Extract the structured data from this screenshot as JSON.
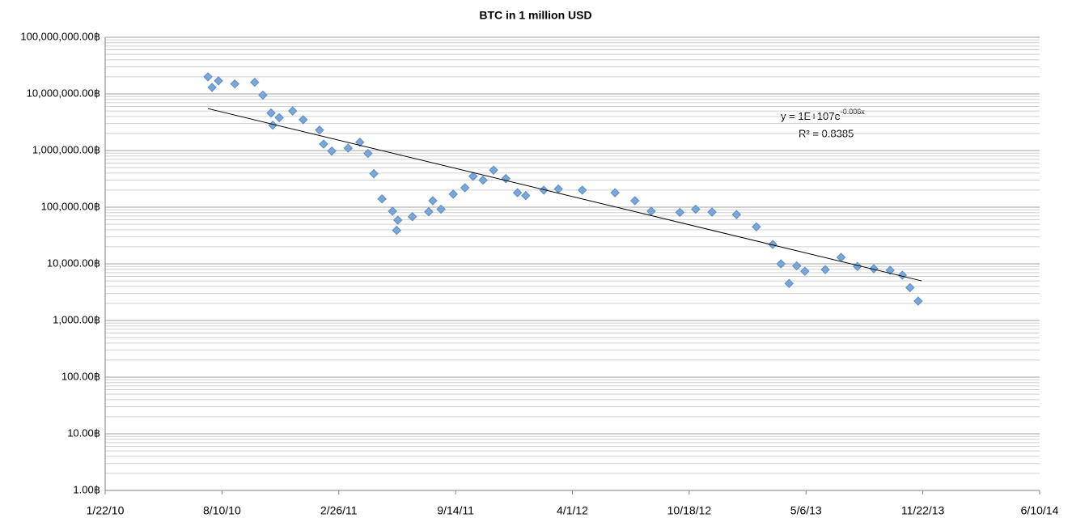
{
  "chart_data": {
    "type": "scatter",
    "title": "BTC in 1 million USD",
    "log_scale": true,
    "grid": true,
    "minor_grid": true,
    "xlim": [
      "1/22/10",
      "6/10/14"
    ],
    "xticks": [
      "1/22/10",
      "8/10/10",
      "2/26/11",
      "9/14/11",
      "4/1/12",
      "10/18/12",
      "5/6/13",
      "11/22/13",
      "6/10/14"
    ],
    "ylim": [
      1,
      100000000
    ],
    "yticks": [
      {
        "value": 1,
        "label": "1.00฿"
      },
      {
        "value": 10,
        "label": "10.00฿"
      },
      {
        "value": 100,
        "label": "100.00฿"
      },
      {
        "value": 1000,
        "label": "1,000.00฿"
      },
      {
        "value": 10000,
        "label": "10,000.00฿"
      },
      {
        "value": 100000,
        "label": "100,000.00฿"
      },
      {
        "value": 1000000,
        "label": "1,000,000.00฿"
      },
      {
        "value": 10000000,
        "label": "10,000,000.00฿"
      },
      {
        "value": 100000000,
        "label": "100,000,000.00฿"
      }
    ],
    "color": "#7ba7d8",
    "x": [
      "7/17/10",
      "7/24/10",
      "8/4/10",
      "9/1/10",
      "10/5/10",
      "10/19/10",
      "11/2/10",
      "11/5/10",
      "11/16/10",
      "12/9/10",
      "12/27/10",
      "1/24/11",
      "1/31/11",
      "2/14/11",
      "3/14/11",
      "4/3/11",
      "4/17/11",
      "4/27/11",
      "5/11/11",
      "5/29/11",
      "6/5/11",
      "6/7/11",
      "7/2/11",
      "7/30/11",
      "8/6/11",
      "8/20/11",
      "9/10/11",
      "9/30/11",
      "10/14/11",
      "10/31/11",
      "11/18/11",
      "12/9/11",
      "12/29/11",
      "1/12/12",
      "2/12/12",
      "3/8/12",
      "4/18/12",
      "6/13/12",
      "7/17/12",
      "8/14/12",
      "10/2/12",
      "10/29/12",
      "11/26/12",
      "1/7/13",
      "2/10/13",
      "3/10/13",
      "3/24/13",
      "4/7/13",
      "4/20/13",
      "5/4/13",
      "6/8/13",
      "7/5/13",
      "8/2/13",
      "8/30/13",
      "9/27/13",
      "10/18/13",
      "10/31/13",
      "11/14/13"
    ],
    "values": [
      20000000,
      13000000,
      17000000,
      15000000,
      16000000,
      9500000,
      4600000,
      2800000,
      3800000,
      5000000,
      3500000,
      2300000,
      1300000,
      980000,
      1100000,
      1400000,
      890000,
      390000,
      140000,
      85000,
      39000,
      59000,
      68000,
      83000,
      130000,
      92000,
      170000,
      220000,
      350000,
      300000,
      450000,
      320000,
      180000,
      160000,
      200000,
      210000,
      200000,
      180000,
      130000,
      85000,
      81000,
      92000,
      82000,
      74000,
      45000,
      22000,
      10000,
      4500,
      9200,
      7400,
      7900,
      13000,
      9000,
      8200,
      7700,
      6300,
      3800,
      2200
    ],
    "trendline": {
      "x": [
        "7/17/10",
        "11/20/13"
      ],
      "values": [
        5500000,
        5000
      ],
      "color": "#000000"
    },
    "equation": "y = 1E+107e",
    "equation_exponent": "-0.006x",
    "r_squared": "R² = 0.8385"
  }
}
